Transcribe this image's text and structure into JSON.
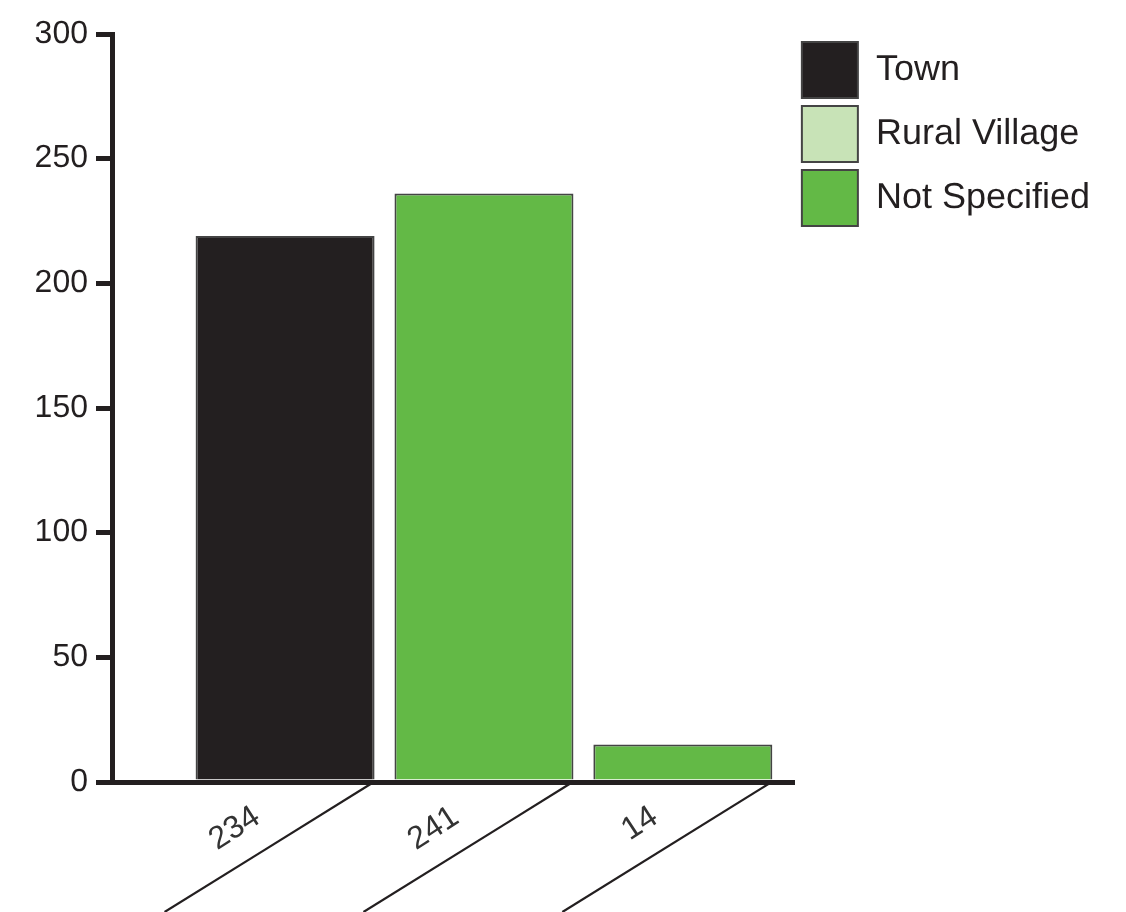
{
  "chart_data": {
    "type": "bar",
    "categories": [
      "234",
      "241",
      "14"
    ],
    "series": [
      {
        "name": "Town",
        "color": "#231f20",
        "values": [
          219,
          null,
          null
        ]
      },
      {
        "name": "Rural Village",
        "color": "#c8e3b7",
        "values": [
          null,
          null,
          null
        ]
      },
      {
        "name": "Not Specified",
        "color": "#63b946",
        "values": [
          null,
          236,
          15
        ]
      }
    ],
    "ylim": [
      0,
      300
    ],
    "yticks": [
      0,
      50,
      100,
      150,
      200,
      250,
      300
    ],
    "legend": "top right"
  }
}
